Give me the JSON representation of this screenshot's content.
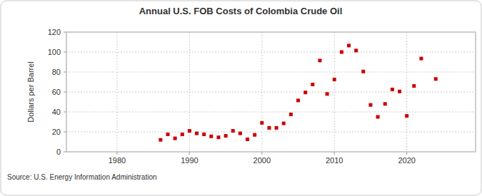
{
  "chart_data": {
    "type": "scatter",
    "title": "Annual U.S. FOB Costs of Colombia Crude Oil",
    "y_label": "Dollars per Barrel",
    "source": "Source: U.S. Energy Information Administration",
    "x": [
      1986,
      1987,
      1988,
      1989,
      1990,
      1991,
      1992,
      1993,
      1994,
      1995,
      1996,
      1997,
      1998,
      1999,
      2000,
      2001,
      2002,
      2003,
      2004,
      2005,
      2006,
      2007,
      2008,
      2009,
      2010,
      2011,
      2012,
      2013,
      2014,
      2015,
      2016,
      2017,
      2018,
      2019,
      2020,
      2021,
      2022,
      2024
    ],
    "values": [
      12,
      17.5,
      13.5,
      17.5,
      21,
      18.5,
      17.5,
      15.5,
      14.5,
      16,
      21,
      18.5,
      12.5,
      17,
      29,
      24,
      24,
      28.5,
      37.5,
      51.5,
      59.5,
      67.5,
      91.5,
      58,
      72.5,
      100,
      106.5,
      101.5,
      80.5,
      47,
      35,
      48,
      62.5,
      60.5,
      36,
      66,
      93.5,
      73
    ],
    "color": "#cc0000",
    "marker": "square",
    "xlim": [
      1973,
      2029.5
    ],
    "xticks": [
      1980,
      1990,
      2000,
      2010,
      2020
    ],
    "ylim": [
      0,
      120
    ],
    "yticks": [
      0,
      20,
      40,
      60,
      80,
      100,
      120
    ],
    "grid": true
  }
}
